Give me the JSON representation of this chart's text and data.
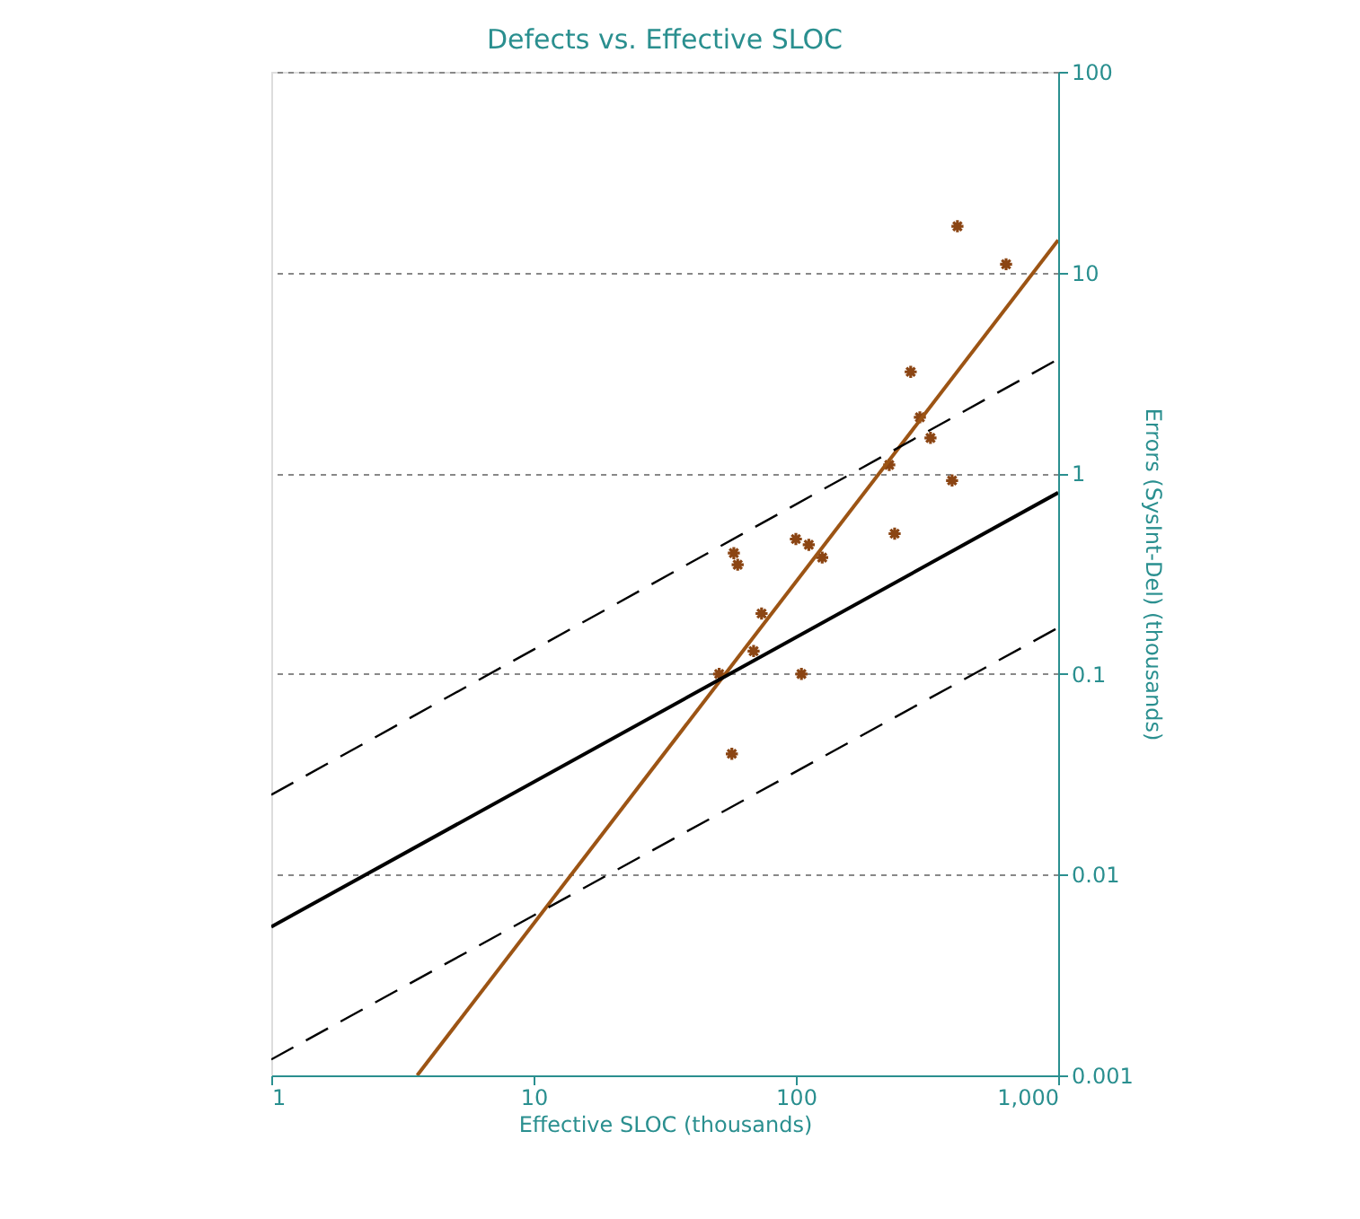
{
  "chart_data": {
    "type": "scatter",
    "title": "Defects vs. Effective SLOC",
    "xlabel": "Effective SLOC (thousands)",
    "ylabel": "Errors (SysInt-Del) (thousands)",
    "log": "xy",
    "grid": "y",
    "marker": "cross",
    "xlim": [
      1,
      1000
    ],
    "xticks": [
      1,
      10,
      100,
      {
        "value": 1000,
        "label": "1,000"
      }
    ],
    "ylim": [
      0.001,
      100
    ],
    "yticks": [
      0.001,
      0.01,
      0.1,
      1,
      10,
      100
    ],
    "series": [
      {
        "color": "#8b4513",
        "x": [
          413,
          633,
          274,
          297,
          326,
          227,
          394,
          238,
          58,
          60,
          100,
          112,
          126,
          74,
          69,
          51,
          105,
          57
        ],
        "values": [
          17,
          11,
          3.2,
          1.9,
          1.5,
          1.1,
          0.92,
          0.5,
          0.4,
          0.35,
          0.47,
          0.44,
          0.38,
          0.2,
          0.13,
          0.1,
          0.1,
          0.04
        ]
      },
      {
        "type": "line",
        "marker": "none",
        "color": "#9c5414",
        "line_style": "solid",
        "x": [
          3.6,
          1000
        ],
        "values": [
          0.001,
          14.5
        ]
      },
      {
        "type": "line",
        "marker": "none",
        "color": "#000000",
        "line_style": "solid",
        "x": [
          1,
          1000
        ],
        "values": [
          0.0055,
          0.8
        ]
      },
      {
        "type": "line",
        "color": "#000000",
        "line_style": "dashed",
        "marker": "none",
        "x": [
          1,
          1000
        ],
        "values": [
          0.025,
          3.7
        ]
      },
      {
        "type": "line",
        "color": "#000000",
        "line_style": "dashed",
        "marker": "none",
        "x": [
          1,
          1000
        ],
        "values": [
          0.0012,
          0.17
        ]
      }
    ]
  }
}
